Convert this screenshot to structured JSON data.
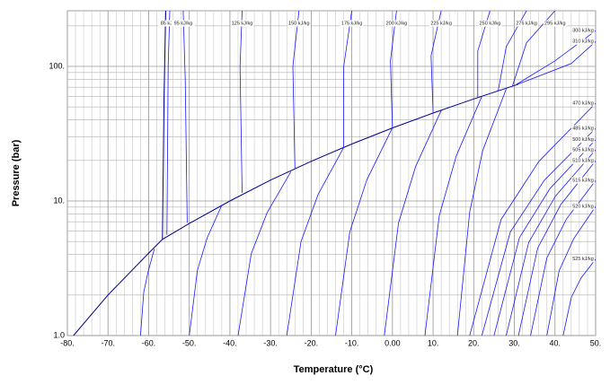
{
  "chart_data": {
    "type": "line",
    "x_label": "Temperature (°C)",
    "y_label": "Pressure (bar)",
    "xlim": [
      -80,
      50
    ],
    "ylim": [
      1,
      259
    ],
    "ylog": true,
    "grid": true,
    "color": "#1a1aff",
    "xticks": [
      {
        "value": -80,
        "label": "-80."
      },
      {
        "value": -70,
        "label": "-70."
      },
      {
        "value": -60,
        "label": "-60."
      },
      {
        "value": -50,
        "label": "-50."
      },
      {
        "value": -40,
        "label": "-40."
      },
      {
        "value": -30,
        "label": "-30."
      },
      {
        "value": -20,
        "label": "-20."
      },
      {
        "value": -10,
        "label": "-10."
      },
      {
        "value": 0,
        "label": "0.00"
      },
      {
        "value": 10,
        "label": "10."
      },
      {
        "value": 20,
        "label": "20."
      },
      {
        "value": 30,
        "label": "30."
      },
      {
        "value": 40,
        "label": "40."
      },
      {
        "value": 50,
        "label": "50."
      }
    ],
    "yticks": [
      {
        "value": 1,
        "label": "1.0"
      },
      {
        "value": 10,
        "label": "10."
      },
      {
        "value": 100,
        "label": "100."
      }
    ],
    "series": [
      {
        "color": "#00008b",
        "x": [
          -78.5,
          -70,
          -60,
          -56.6,
          -50,
          -40,
          -30,
          -20,
          -10,
          0,
          10,
          20,
          31
        ],
        "values": [
          1,
          2,
          4.1,
          5.18,
          6.8,
          10,
          14.3,
          19.7,
          26.5,
          34.9,
          45,
          57.3,
          73.8
        ]
      },
      {
        "color": "#00008b",
        "x": [
          -56.6,
          -56.2,
          -55.8
        ],
        "values": [
          5.18,
          60,
          259
        ]
      },
      {
        "name": "85 kJ/kg",
        "x": [
          -55.5,
          -55.2,
          -54.8
        ],
        "values": [
          5.6,
          100,
          259
        ]
      },
      {
        "name": "95 kJ/kg",
        "x": [
          -50.5,
          -51,
          -51.5
        ],
        "values": [
          6.9,
          80,
          259
        ]
      },
      {
        "name": "125 kJ/kg",
        "x": [
          -37,
          -37.5,
          -37
        ],
        "values": [
          11.5,
          100,
          259
        ]
      },
      {
        "name": "150 kJ/kg",
        "x": [
          -24,
          -24.5,
          -23
        ],
        "values": [
          17.5,
          100,
          259
        ]
      },
      {
        "name": "175 kJ/kg",
        "x": [
          -12,
          -12,
          -10
        ],
        "values": [
          25,
          100,
          259
        ]
      },
      {
        "name": "200 kJ/kg",
        "x": [
          0,
          -0.5,
          1
        ],
        "values": [
          35,
          110,
          259
        ]
      },
      {
        "name": "225 kJ/kg",
        "x": [
          10,
          9.5,
          12
        ],
        "values": [
          45,
          120,
          259
        ]
      },
      {
        "name": "250 kJ/kg",
        "x": [
          21,
          21,
          24
        ],
        "values": [
          58.5,
          130,
          259
        ]
      },
      {
        "name": "275 kJ/kg",
        "x": [
          26,
          28,
          33
        ],
        "values": [
          65,
          140,
          259
        ]
      },
      {
        "name": "295 kJ/kg",
        "x": [
          29.5,
          33,
          40
        ],
        "values": [
          71,
          150,
          259
        ]
      },
      {
        "name": "300 kJ/kg",
        "x": [
          30.5,
          40,
          50
        ],
        "values": [
          73.5,
          110,
          184
        ]
      },
      {
        "name": "310 kJ/kg",
        "x": [
          31,
          44,
          50
        ],
        "values": [
          74,
          105,
          153
        ]
      },
      {
        "x": [
          -62,
          -61.2,
          -60.1,
          -58.6
        ],
        "values": [
          1,
          2.1,
          3.0,
          4.4
        ]
      },
      {
        "x": [
          -50,
          -48,
          -45.6,
          -42
        ],
        "values": [
          1,
          3.05,
          5.32,
          9.3
        ]
      },
      {
        "x": [
          -38,
          -34.75,
          -30.85,
          -25
        ],
        "values": [
          1,
          4.06,
          8.18,
          16.5
        ]
      },
      {
        "x": [
          -26,
          -22.5,
          -18.3,
          -12
        ],
        "values": [
          1,
          5,
          11.18,
          25
        ]
      },
      {
        "x": [
          -14,
          -10.5,
          -6.3,
          0
        ],
        "values": [
          1,
          5.92,
          14.39,
          35
        ]
      },
      {
        "x": [
          -2,
          1.5,
          5.7,
          12
        ],
        "values": [
          1,
          6.86,
          17.99,
          47
        ]
      },
      {
        "x": [
          8,
          11.5,
          15.7,
          22
        ],
        "values": [
          1,
          7.75,
          21.6,
          60
        ]
      },
      {
        "x": [
          16,
          19,
          22.2,
          28
        ],
        "values": [
          1,
          8.25,
          23.7,
          68
        ]
      },
      {
        "name": "470 kJ/kg",
        "x": [
          19,
          26.75,
          36.05,
          50
        ],
        "values": [
          1,
          7.29,
          19.7,
          53.2
        ]
      },
      {
        "name": "485 kJ/kg",
        "x": [
          22,
          29,
          37.4,
          50
        ],
        "values": [
          1,
          5.88,
          14.27,
          34.6
        ]
      },
      {
        "name": "500 kJ/kg",
        "x": [
          25,
          31.25,
          38.75,
          50
        ],
        "values": [
          1,
          5.34,
          12.34,
          28.5
        ]
      },
      {
        "name": "505 kJ/kg",
        "x": [
          28,
          33.5,
          40.1,
          50
        ],
        "values": [
          1,
          4.9,
          10.84,
          24
        ]
      },
      {
        "name": "510 kJ/kg",
        "x": [
          31,
          35.75,
          41.45,
          50
        ],
        "values": [
          1,
          4.46,
          9.42,
          19.9
        ]
      },
      {
        "name": "515 kJ/kg",
        "x": [
          34,
          38,
          42.8,
          50
        ],
        "values": [
          1,
          3.77,
          7.32,
          14.2
        ]
      },
      {
        "name": "520 kJ/kg",
        "x": [
          38,
          41,
          44.6,
          50
        ],
        "values": [
          1,
          3.02,
          5.24,
          9.1
        ]
      },
      {
        "name": "525 kJ/kg",
        "x": [
          42,
          44,
          46.4,
          50
        ],
        "values": [
          1,
          1.92,
          2.67,
          3.7
        ]
      }
    ]
  }
}
